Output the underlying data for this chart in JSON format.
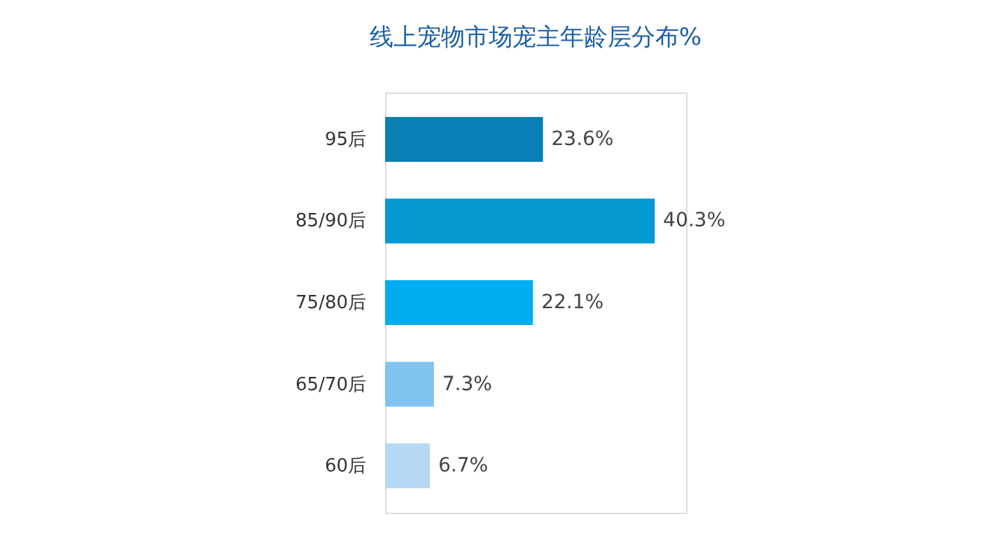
{
  "chart_data": {
    "type": "bar",
    "orientation": "horizontal",
    "title": "线上宠物市场宠主年龄层分布%",
    "categories": [
      "95后",
      "85/90后",
      "75/80后",
      "65/70后",
      "60后"
    ],
    "values": [
      23.6,
      40.3,
      22.1,
      7.3,
      6.7
    ],
    "colors": [
      "#0a7fb5",
      "#0599d2",
      "#00aeef",
      "#80c3ef",
      "#b5d8f5"
    ],
    "value_labels": [
      "23.6%",
      "40.3%",
      "22.1%",
      "7.3%",
      "6.7%"
    ]
  }
}
